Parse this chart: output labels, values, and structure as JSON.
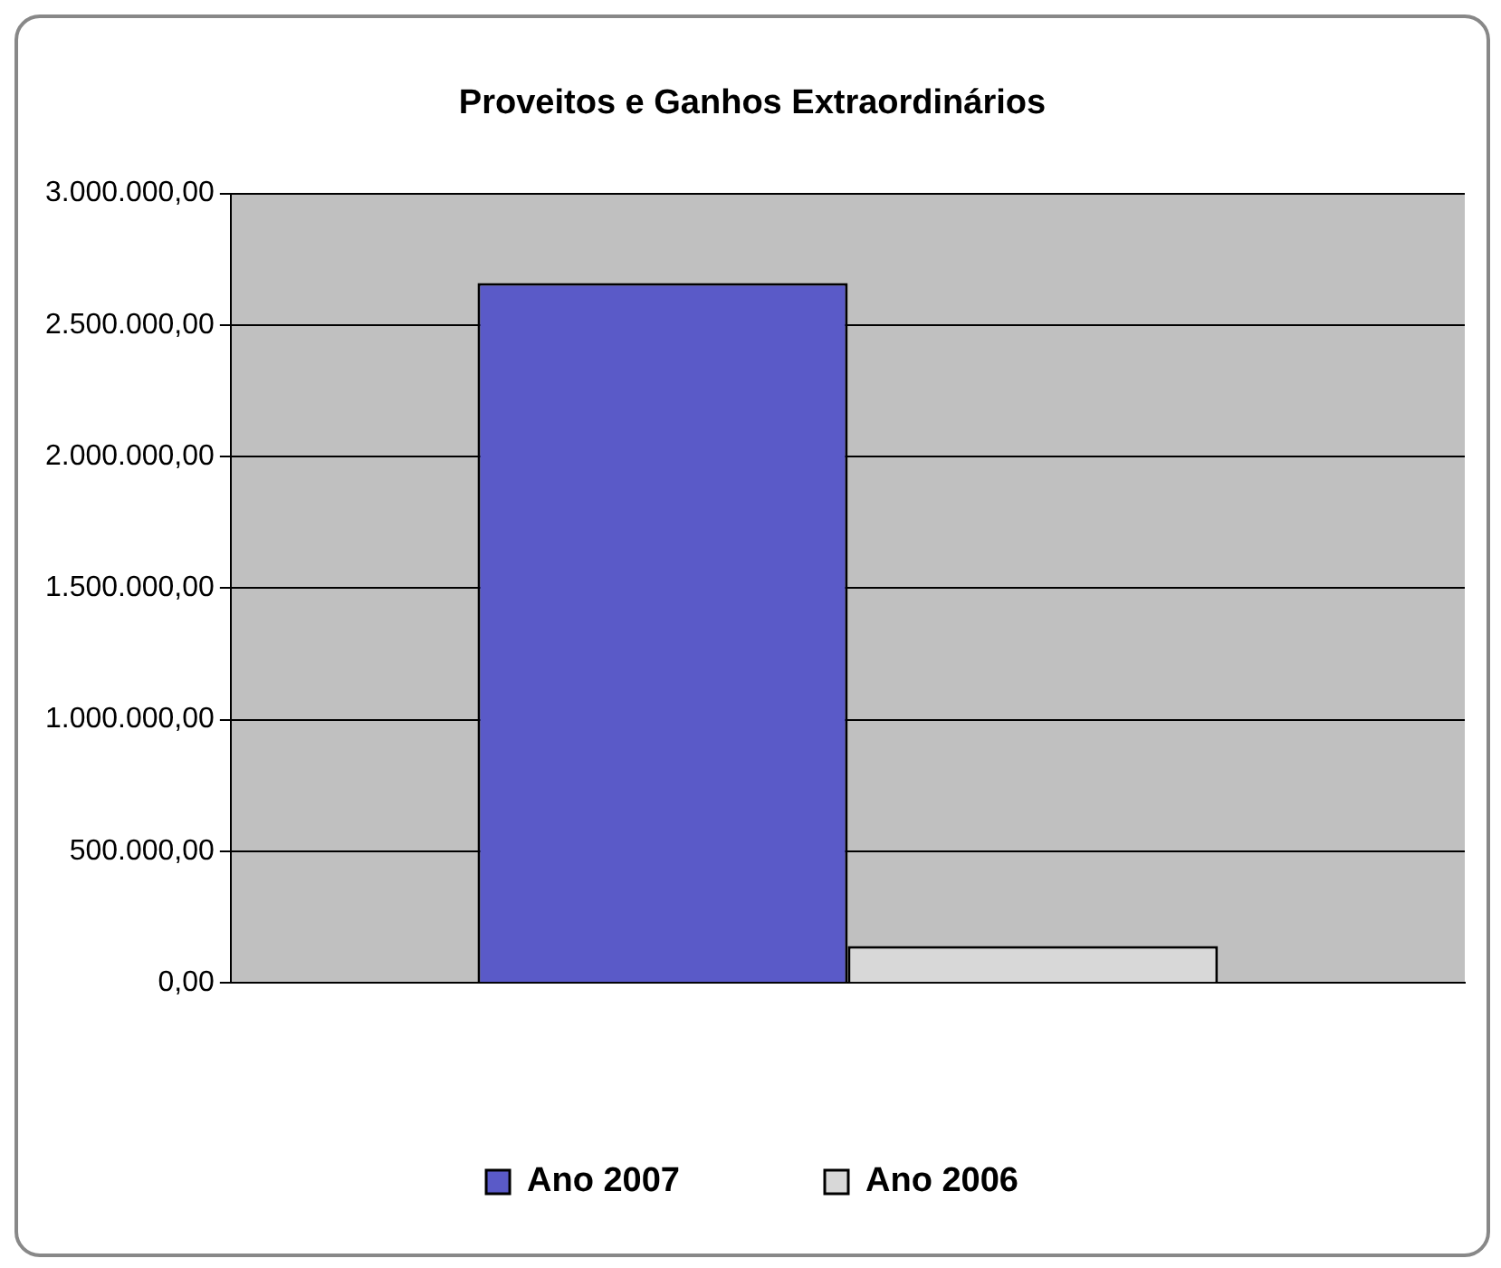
{
  "chart_data": {
    "type": "bar",
    "title": "Proveitos e Ganhos Extraordinários",
    "categories": [
      null
    ],
    "series": [
      {
        "name": "Ano 2007",
        "color": "#5a5ac8",
        "values": [
          2660000
        ]
      },
      {
        "name": "Ano 2006",
        "color": "#d8d8d8",
        "values": [
          140000
        ]
      }
    ],
    "ylim": [
      0,
      3000000
    ],
    "yticks": [
      {
        "value": 0,
        "label": "0,00"
      },
      {
        "value": 500000,
        "label": "500.000,00"
      },
      {
        "value": 1000000,
        "label": "1.000.000,00"
      },
      {
        "value": 1500000,
        "label": "1.500.000,00"
      },
      {
        "value": 2000000,
        "label": "2.000.000,00"
      },
      {
        "value": 2500000,
        "label": "2.500.000,00"
      },
      {
        "value": 3000000,
        "label": "3.000.000,00"
      }
    ],
    "grid": "y",
    "legend": "bottom"
  }
}
